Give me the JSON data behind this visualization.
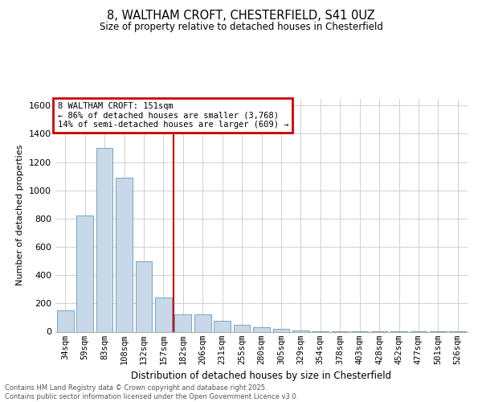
{
  "title_line1": "8, WALTHAM CROFT, CHESTERFIELD, S41 0UZ",
  "title_line2": "Size of property relative to detached houses in Chesterfield",
  "xlabel": "Distribution of detached houses by size in Chesterfield",
  "ylabel": "Number of detached properties",
  "annotation_line1": "8 WALTHAM CROFT: 151sqm",
  "annotation_line2": "← 86% of detached houses are smaller (3,768)",
  "annotation_line3": "14% of semi-detached houses are larger (609) →",
  "footer_line1": "Contains HM Land Registry data © Crown copyright and database right 2025.",
  "footer_line2": "Contains public sector information licensed under the Open Government Licence v3.0.",
  "bar_color": "#c8d8e8",
  "bar_edge_color": "#6699bb",
  "vline_color": "#cc0000",
  "annotation_box_edge": "#cc0000",
  "categories": [
    "34sqm",
    "59sqm",
    "83sqm",
    "108sqm",
    "132sqm",
    "157sqm",
    "182sqm",
    "206sqm",
    "231sqm",
    "255sqm",
    "280sqm",
    "305sqm",
    "329sqm",
    "354sqm",
    "378sqm",
    "403sqm",
    "428sqm",
    "452sqm",
    "477sqm",
    "501sqm",
    "526sqm"
  ],
  "values": [
    150,
    820,
    1300,
    1090,
    500,
    240,
    120,
    120,
    75,
    50,
    30,
    20,
    10,
    5,
    3,
    2,
    1,
    1,
    1,
    1,
    1
  ],
  "ylim": [
    0,
    1650
  ],
  "yticks": [
    0,
    200,
    400,
    600,
    800,
    1000,
    1200,
    1400,
    1600
  ],
  "vline_at_index": 5.5,
  "background_color": "#ffffff",
  "grid_color": "#d0d0d0"
}
